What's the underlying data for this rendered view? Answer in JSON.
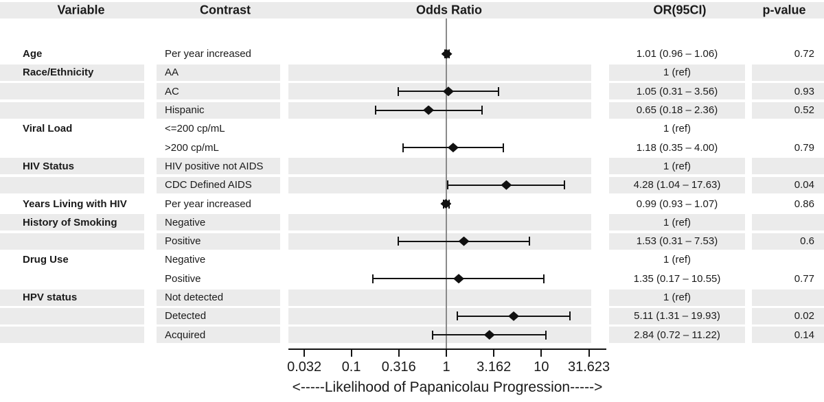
{
  "headers": {
    "variable": "Variable",
    "contrast": "Contrast",
    "odds_ratio": "Odds Ratio",
    "or_ci": "OR(95CI)",
    "p_value": "p-value"
  },
  "colors": {
    "row_band": "#ebebeb",
    "header_band": "#ebebeb",
    "marker": "#111111",
    "reference_line": "#8a8a8a",
    "text": "#1a1a1a",
    "axis": "#111111"
  },
  "chart_data": {
    "type": "scatter",
    "subtype": "forest-plot",
    "title": "",
    "xlabel": "<-----Likelihood of Papanicolau Progression----->",
    "x_scale": "log10",
    "xlim": [
      0.022,
      33.8
    ],
    "reference_value": 1,
    "grid": false,
    "x_ticks": [
      {
        "value": 0.032,
        "label": "0.032"
      },
      {
        "value": 0.1,
        "label": "0.1"
      },
      {
        "value": 0.316,
        "label": "0.316"
      },
      {
        "value": 1,
        "label": "1"
      },
      {
        "value": 3.162,
        "label": "3.162"
      },
      {
        "value": 10,
        "label": "10"
      },
      {
        "value": 31.623,
        "label": "31.623"
      }
    ],
    "rows": [
      {
        "variable": "Age",
        "contrast": "Per year increased",
        "or": 1.01,
        "ci_low": 0.96,
        "ci_high": 1.06,
        "or_text": "1.01 (0.96 – 1.06)",
        "p_text": "0.72",
        "shaded": false
      },
      {
        "variable": "Race/Ethnicity",
        "contrast": "AA",
        "or": null,
        "ci_low": null,
        "ci_high": null,
        "or_text": "1 (ref)",
        "p_text": "",
        "shaded": true
      },
      {
        "variable": "",
        "contrast": "AC",
        "or": 1.05,
        "ci_low": 0.31,
        "ci_high": 3.56,
        "or_text": "1.05 (0.31 – 3.56)",
        "p_text": "0.93",
        "shaded": true
      },
      {
        "variable": "",
        "contrast": "Hispanic",
        "or": 0.65,
        "ci_low": 0.18,
        "ci_high": 2.36,
        "or_text": "0.65 (0.18 – 2.36)",
        "p_text": "0.52",
        "shaded": true
      },
      {
        "variable": "Viral Load",
        "contrast": "<=200 cp/mL",
        "or": null,
        "ci_low": null,
        "ci_high": null,
        "or_text": "1 (ref)",
        "p_text": "",
        "shaded": false
      },
      {
        "variable": "",
        "contrast": ">200 cp/mL",
        "or": 1.18,
        "ci_low": 0.35,
        "ci_high": 4.0,
        "or_text": "1.18 (0.35 – 4.00)",
        "p_text": "0.79",
        "shaded": false
      },
      {
        "variable": "HIV Status",
        "contrast": "HIV positive not AIDS",
        "or": null,
        "ci_low": null,
        "ci_high": null,
        "or_text": "1 (ref)",
        "p_text": "",
        "shaded": true
      },
      {
        "variable": "",
        "contrast": "CDC Defined AIDS",
        "or": 4.28,
        "ci_low": 1.04,
        "ci_high": 17.63,
        "or_text": "4.28 (1.04 – 17.63)",
        "p_text": "0.04",
        "shaded": true
      },
      {
        "variable": "Years Living with HIV",
        "contrast": "Per year increased",
        "or": 0.99,
        "ci_low": 0.93,
        "ci_high": 1.07,
        "or_text": "0.99 (0.93 – 1.07)",
        "p_text": "0.86",
        "shaded": false
      },
      {
        "variable": "History of Smoking",
        "contrast": "Negative",
        "or": null,
        "ci_low": null,
        "ci_high": null,
        "or_text": "1 (ref)",
        "p_text": "",
        "shaded": true
      },
      {
        "variable": "",
        "contrast": "Positive",
        "or": 1.53,
        "ci_low": 0.31,
        "ci_high": 7.53,
        "or_text": "1.53 (0.31 – 7.53)",
        "p_text": "0.6",
        "shaded": true
      },
      {
        "variable": "Drug Use",
        "contrast": "Negative",
        "or": null,
        "ci_low": null,
        "ci_high": null,
        "or_text": "1 (ref)",
        "p_text": "",
        "shaded": false
      },
      {
        "variable": "",
        "contrast": "Positive",
        "or": 1.35,
        "ci_low": 0.17,
        "ci_high": 10.55,
        "or_text": "1.35 (0.17 – 10.55)",
        "p_text": "0.77",
        "shaded": false
      },
      {
        "variable": "HPV status",
        "contrast": "Not detected",
        "or": null,
        "ci_low": null,
        "ci_high": null,
        "or_text": "1 (ref)",
        "p_text": "",
        "shaded": true
      },
      {
        "variable": "",
        "contrast": "Detected",
        "or": 5.11,
        "ci_low": 1.31,
        "ci_high": 19.93,
        "or_text": "5.11 (1.31 – 19.93)",
        "p_text": "0.02",
        "shaded": true
      },
      {
        "variable": "",
        "contrast": "Acquired",
        "or": 2.84,
        "ci_low": 0.72,
        "ci_high": 11.22,
        "or_text": "2.84 (0.72 – 11.22)",
        "p_text": "0.14",
        "shaded": true
      }
    ]
  }
}
